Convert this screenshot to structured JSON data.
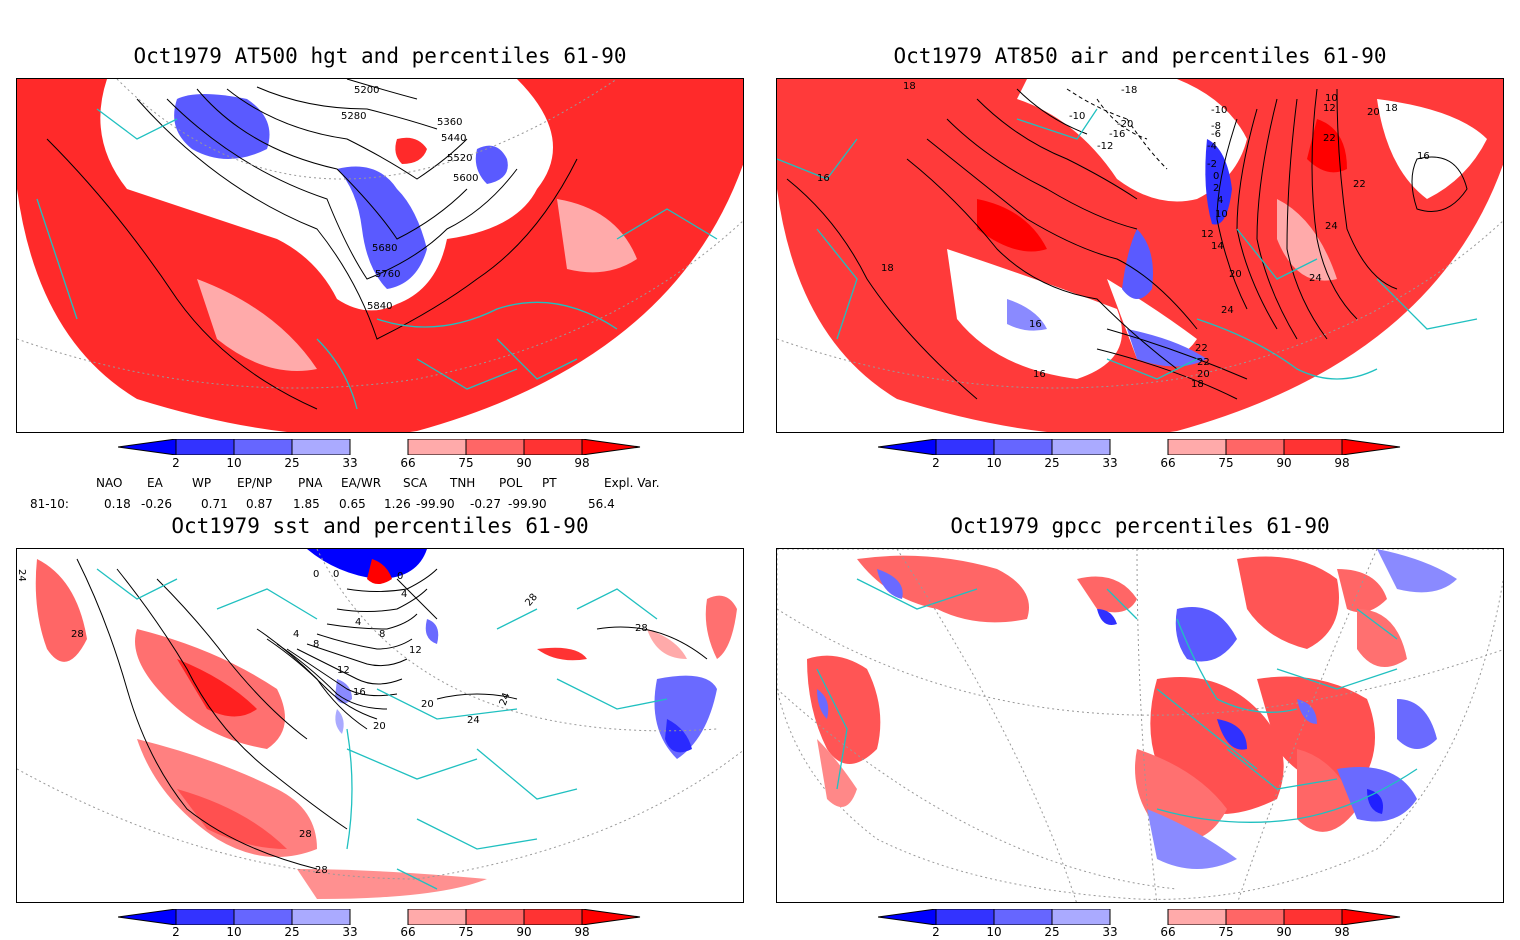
{
  "panels": [
    {
      "title": "Oct1979 AT500 hgt and percentiles 61-90",
      "contour_labels": [
        "5200",
        "5280",
        "5360",
        "5440",
        "5520",
        "5600",
        "5680",
        "5760",
        "5840"
      ]
    },
    {
      "title": "Oct1979 AT850 air and percentiles 61-90",
      "contour_labels": [
        "18",
        "16",
        "18",
        "-10",
        "-18",
        "-10",
        "-20",
        "-16",
        "-12",
        "-8",
        "-6",
        "-4",
        "-2",
        "0",
        "2",
        "4",
        "10",
        "12",
        "14",
        "20",
        "22",
        "24",
        "16",
        "24",
        "22",
        "20",
        "18",
        "16",
        "10",
        "12",
        "20",
        "18",
        "22",
        "22",
        "24",
        "16"
      ]
    },
    {
      "title": "Oct1979 sst and percentiles 61-90",
      "contour_labels": [
        "24",
        "28",
        "0",
        "0",
        "0",
        "4",
        "4",
        "8",
        "4",
        "8",
        "12",
        "12",
        "16",
        "20",
        "20",
        "24",
        "24",
        "28",
        "28",
        "28",
        "28"
      ]
    },
    {
      "title": "Oct1979 gpcc percentiles 61-90",
      "contour_labels": []
    }
  ],
  "colorbar": {
    "ticks": [
      "2",
      "10",
      "25",
      "33",
      "66",
      "75",
      "90",
      "98"
    ],
    "colors": [
      "#0000ff",
      "#3333ff",
      "#6666ff",
      "#aaaaff",
      "#ffffff",
      "#ffaaaa",
      "#ff6666",
      "#ff3333",
      "#ff0000"
    ]
  },
  "indices": {
    "headers": [
      "NAO",
      "EA",
      "WP",
      "EP/NP",
      "PNA",
      "EA/WR",
      "SCA",
      "TNH",
      "POL",
      "PT",
      "Expl. Var."
    ],
    "row_label": "81-10:",
    "values": [
      "0.18",
      "-0.26",
      "0.71",
      "0.87",
      "1.85",
      "0.65",
      "1.26",
      "-99.90",
      "-0.27",
      "-99.90",
      "56.4"
    ]
  },
  "colors": {
    "coast": "#20c0c0",
    "warm": "#ff2a2a",
    "cold": "#4a4aff"
  }
}
